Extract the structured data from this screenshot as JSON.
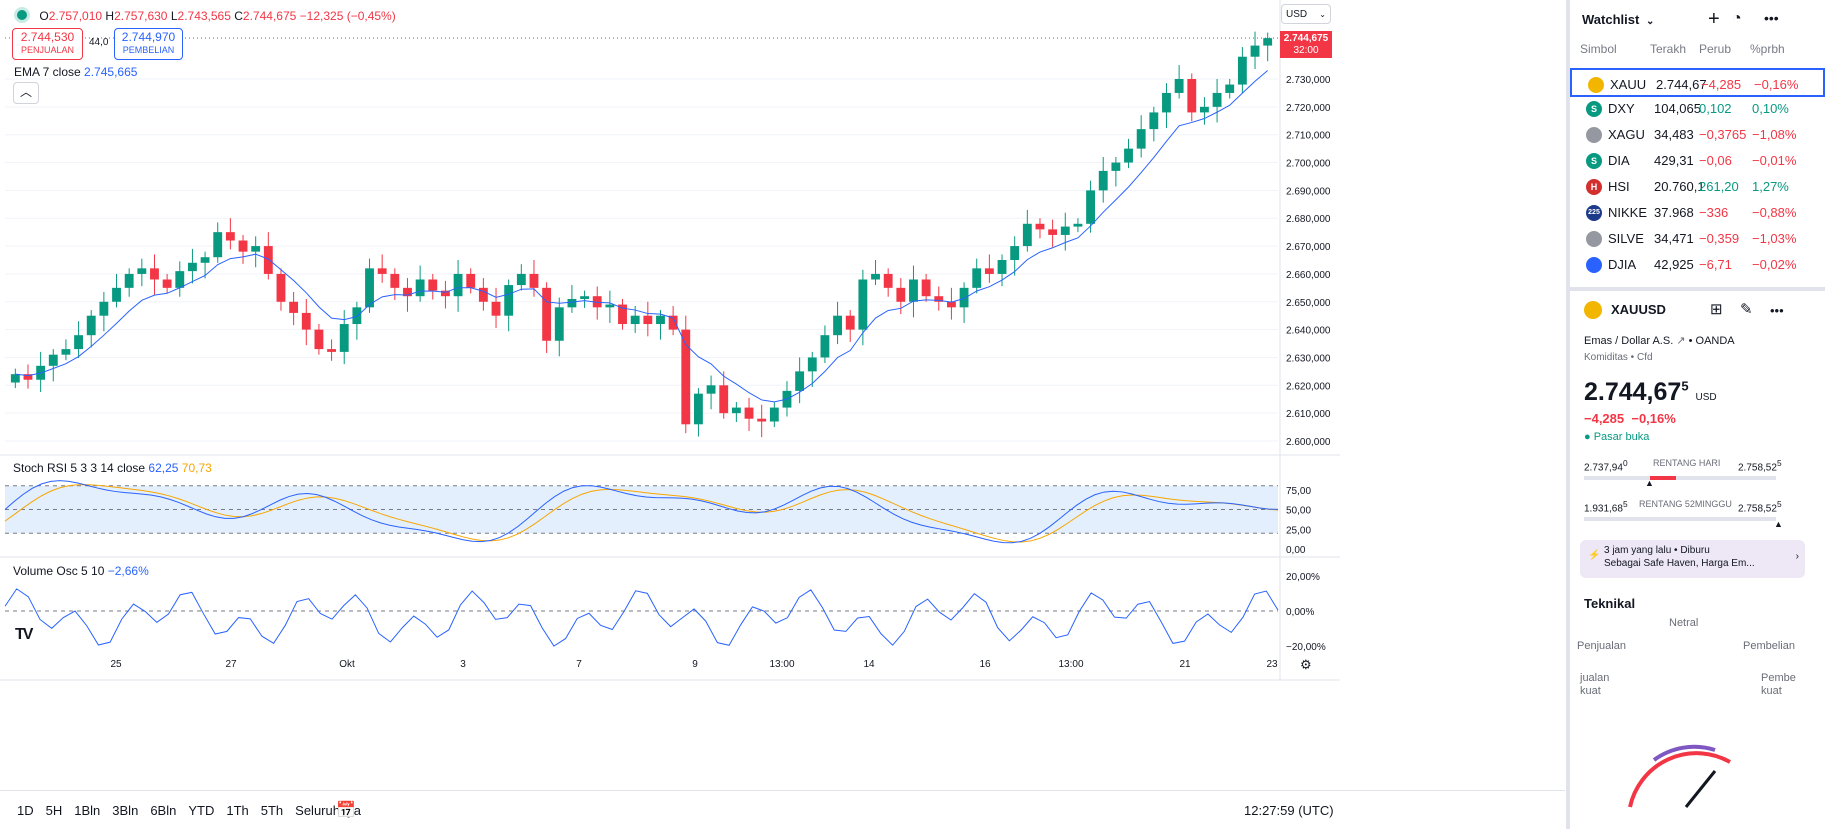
{
  "chart": {
    "ohlc": {
      "o_label": "O",
      "o": "2.757,010",
      "h_label": "H",
      "h": "2.757,630",
      "l_label": "L",
      "l": "2.743,565",
      "c_label": "C",
      "c": "2.744,675",
      "change": "−12,325 (−0,45%)"
    },
    "sell": {
      "price": "2.744,530",
      "label": "PENJUALAN"
    },
    "spread": "44,0",
    "buy": {
      "price": "2.744,970",
      "label": "PEMBELIAN"
    },
    "ema_label": "EMA 7 close",
    "ema_value": "2.745,665",
    "currency": "USD",
    "last_price_tag": "2.744,675",
    "countdown": "32:00",
    "price_axis": [
      "2.730,000",
      "2.720,000",
      "2.710,000",
      "2.700,000",
      "2.690,000",
      "2.680,000",
      "2.670,000",
      "2.660,000",
      "2.650,000",
      "2.640,000",
      "2.630,000",
      "2.620,000",
      "2.610,000",
      "2.600,000"
    ],
    "stoch_label": "Stoch RSI 5 3 3 14 close",
    "stoch_k": "62,25",
    "stoch_d": "70,73",
    "stoch_axis": [
      "75,00",
      "50,00",
      "25,00",
      "0,00"
    ],
    "vol_label": "Volume Osc 5 10",
    "vol_value": "−2,66%",
    "vol_axis": [
      "20,00%",
      "0,00%",
      "−20,00%"
    ],
    "time_axis": [
      "25",
      "27",
      "Okt",
      "3",
      "7",
      "9",
      "13:00",
      "14",
      "16",
      "13:00",
      "21",
      "23"
    ],
    "colors": {
      "up": "#089981",
      "down": "#f23645",
      "ema": "#2962ff",
      "stoch_k": "#2962ff",
      "stoch_d": "#f7a600",
      "band": "#e3effd"
    }
  },
  "chart_data": {
    "type": "candlestick",
    "series": [
      {
        "name": "XAUUSD",
        "values": [
          2624,
          2622,
          2627,
          2631,
          2633,
          2638,
          2645,
          2650,
          2655,
          2660,
          2662,
          2658,
          2655,
          2661,
          2664,
          2666,
          2675,
          2672,
          2668,
          2670,
          2660,
          2650,
          2646,
          2640,
          2633,
          2632,
          2642,
          2648,
          2662,
          2660,
          2655,
          2652,
          2658,
          2654,
          2652,
          2660,
          2655,
          2650,
          2645,
          2656,
          2660,
          2655,
          2636,
          2648,
          2651,
          2652,
          2648,
          2649,
          2642,
          2645,
          2642,
          2645,
          2640,
          2606,
          2617,
          2620,
          2610,
          2612,
          2608,
          2607,
          2612,
          2618,
          2625,
          2630,
          2638,
          2645,
          2640,
          2658,
          2660,
          2655,
          2650,
          2658,
          2652,
          2650,
          2648,
          2655,
          2662,
          2660,
          2665,
          2670,
          2678,
          2676,
          2674,
          2677,
          2678,
          2690,
          2697,
          2700,
          2705,
          2712,
          2718,
          2725,
          2730,
          2718,
          2720,
          2725,
          2728,
          2738,
          2742,
          2744.675
        ]
      }
    ]
  },
  "watchlist": {
    "title": "Watchlist",
    "columns": [
      "Simbol",
      "Terakh",
      "Perub",
      "%prbh"
    ],
    "rows": [
      {
        "symbol": "XAUU",
        "last": "2.744,67",
        "change": "−4,285",
        "pct": "−0,16%",
        "dir": "down",
        "badge": "gold"
      },
      {
        "symbol": "DXY",
        "last": "104,065",
        "change": "0,102",
        "pct": "0,10%",
        "dir": "up",
        "badge": "S"
      },
      {
        "symbol": "XAGU",
        "last": "34,483",
        "change": "−0,3765",
        "pct": "−1,08%",
        "dir": "down",
        "badge": "silver"
      },
      {
        "symbol": "DIA",
        "last": "429,31",
        "change": "−0,06",
        "pct": "−0,01%",
        "dir": "down",
        "badge": "S"
      },
      {
        "symbol": "HSI",
        "last": "20.760,1",
        "change": "261,20",
        "pct": "1,27%",
        "dir": "up",
        "badge": "H"
      },
      {
        "symbol": "NIKKE",
        "last": "37.968",
        "change": "−336",
        "pct": "−0,88%",
        "dir": "down",
        "badge": "225"
      },
      {
        "symbol": "SILVE",
        "last": "34,471",
        "change": "−0,359",
        "pct": "−1,03%",
        "dir": "down",
        "badge": "silver"
      },
      {
        "symbol": "DJIA",
        "last": "42,925",
        "change": "−6,71",
        "pct": "−0,02%",
        "dir": "down",
        "badge": "flag"
      }
    ]
  },
  "detail": {
    "symbol": "XAUUSD",
    "desc": "Emas / Dollar A.S.",
    "broker": "OANDA",
    "type": "Komiditas",
    "cfd": "Cfd",
    "price": "2.744,67",
    "price_sup": "5",
    "currency": "USD",
    "change": "−4,285",
    "pct": "−0,16%",
    "status": "Pasar buka",
    "day_low": "2.737,94",
    "day_low_sup": "0",
    "day_label": "RENTANG HARI",
    "day_high": "2.758,52",
    "day_high_sup": "5",
    "w52_low": "1.931,68",
    "w52_low_sup": "5",
    "w52_label": "RENTANG 52MINGGU",
    "w52_high": "2.758,52",
    "w52_high_sup": "5",
    "news_time": "3 jam yang lalu",
    "news_text1": "Diburu",
    "news_text2": "Sebagai Safe Haven, Harga Em...",
    "tech_title": "Teknikal",
    "gauge_neutral": "Netral",
    "gauge_sell": "Penjualan",
    "gauge_buy": "Pembelian",
    "gauge_strong_sell": "jualan\nkuat",
    "gauge_strong_buy": "Pembe\nkuat"
  },
  "bottom": {
    "ranges": [
      "1D",
      "5H",
      "1Bln",
      "3Bln",
      "6Bln",
      "YTD",
      "1Th",
      "5Th",
      "Seluruhnya"
    ],
    "clock": "12:27:59 (UTC)"
  }
}
